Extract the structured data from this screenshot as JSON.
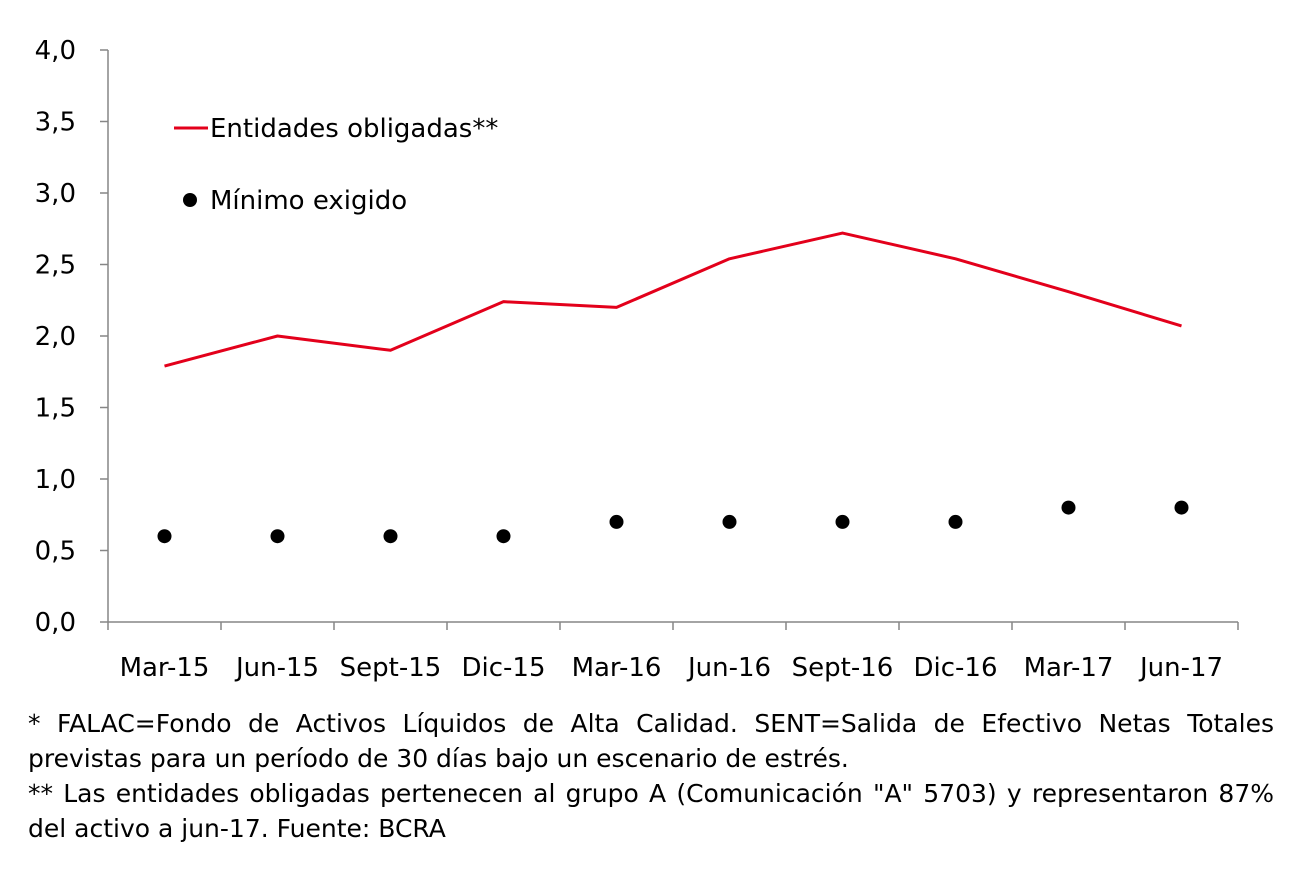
{
  "chart_data": {
    "type": "line",
    "title": "",
    "xlabel": "",
    "ylabel": "",
    "categories": [
      "Mar-15",
      "Jun-15",
      "Sept-15",
      "Dic-15",
      "Mar-16",
      "Jun-16",
      "Sept-16",
      "Dic-16",
      "Mar-17",
      "Jun-17"
    ],
    "ylim": [
      0,
      4
    ],
    "yticks": [
      "0,0",
      "0,5",
      "1,0",
      "1,5",
      "2,0",
      "2,5",
      "3,0",
      "3,5",
      "4,0"
    ],
    "grid": false,
    "legend_position": "top-left",
    "series": [
      {
        "name": "Entidades obligadas**",
        "kind": "line",
        "color": "#e3001b",
        "values": [
          1.79,
          2.0,
          1.9,
          2.24,
          2.2,
          2.54,
          2.72,
          2.54,
          2.31,
          2.07
        ]
      },
      {
        "name": "Mínimo exigido",
        "kind": "marker",
        "color": "#000000",
        "values": [
          0.6,
          0.6,
          0.6,
          0.6,
          0.7,
          0.7,
          0.7,
          0.7,
          0.8,
          0.8
        ]
      }
    ]
  },
  "notes": {
    "note1": "* FALAC=Fondo de Activos Líquidos de Alta Calidad. SENT=Salida de Efectivo Netas Totales previstas para un período de 30 días bajo un escenario de estrés.",
    "note2": "** Las entidades obligadas pertenecen al grupo A (Comunicación \"A\" 5703) y representaron 87% del activo a jun-17. Fuente: BCRA"
  }
}
